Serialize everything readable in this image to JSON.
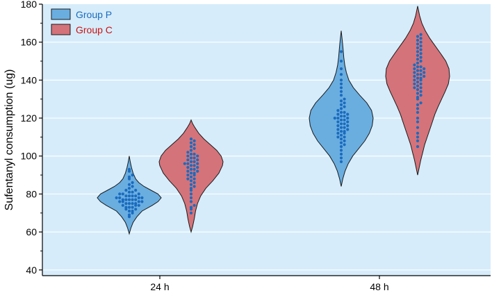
{
  "chart_data": {
    "type": "violin",
    "title": "",
    "xlabel": "",
    "ylabel": "Sufentanyl consumption (ug)",
    "ylim": [
      37,
      180
    ],
    "yticks": [
      40,
      60,
      80,
      100,
      120,
      140,
      160,
      180
    ],
    "categories": [
      "24 h",
      "48 h"
    ],
    "grid": true,
    "legend_position": "top-left",
    "background_color": "#d6ecfa",
    "point_color": "#1a6bbf",
    "series": [
      {
        "name": "Group P",
        "fill_color": "#6aaee0",
        "text_color": "#1a6bbf",
        "groups": [
          {
            "category": "24 h",
            "range": [
              59,
              100
            ],
            "density": [
              [
                59,
                0.0
              ],
              [
                62,
                0.05
              ],
              [
                65,
                0.12
              ],
              [
                68,
                0.24
              ],
              [
                71,
                0.4
              ],
              [
                74,
                0.72
              ],
              [
                76,
                0.9
              ],
              [
                78,
                1.0
              ],
              [
                80,
                0.9
              ],
              [
                82,
                0.68
              ],
              [
                84,
                0.46
              ],
              [
                86,
                0.3
              ],
              [
                88,
                0.2
              ],
              [
                91,
                0.12
              ],
              [
                94,
                0.07
              ],
              [
                97,
                0.03
              ],
              [
                100,
                0.0
              ]
            ],
            "points": [
              68,
              69,
              70,
              71,
              71,
              72,
              72,
              73,
              73,
              73,
              74,
              74,
              74,
              75,
              75,
              75,
              75,
              76,
              76,
              76,
              76,
              77,
              77,
              77,
              77,
              77,
              78,
              78,
              78,
              78,
              79,
              79,
              79,
              79,
              80,
              80,
              80,
              81,
              81,
              82,
              82,
              83,
              84,
              85,
              86,
              88,
              89,
              90,
              92,
              93
            ]
          },
          {
            "category": "48 h",
            "range": [
              84,
              166
            ],
            "density": [
              [
                84,
                0.0
              ],
              [
                88,
                0.05
              ],
              [
                92,
                0.12
              ],
              [
                96,
                0.22
              ],
              [
                100,
                0.36
              ],
              [
                104,
                0.55
              ],
              [
                108,
                0.74
              ],
              [
                112,
                0.88
              ],
              [
                116,
                0.97
              ],
              [
                120,
                1.0
              ],
              [
                124,
                0.95
              ],
              [
                128,
                0.8
              ],
              [
                132,
                0.58
              ],
              [
                136,
                0.38
              ],
              [
                140,
                0.24
              ],
              [
                144,
                0.16
              ],
              [
                148,
                0.11
              ],
              [
                152,
                0.08
              ],
              [
                156,
                0.06
              ],
              [
                160,
                0.04
              ],
              [
                163,
                0.02
              ],
              [
                166,
                0.0
              ]
            ],
            "points": [
              97,
              99,
              101,
              103,
              105,
              106,
              107,
              108,
              109,
              110,
              110,
              111,
              112,
              112,
              113,
              113,
              114,
              114,
              115,
              115,
              116,
              116,
              117,
              117,
              118,
              118,
              119,
              119,
              120,
              120,
              120,
              121,
              121,
              122,
              122,
              123,
              123,
              124,
              125,
              126,
              127,
              128,
              129,
              130,
              132,
              134,
              136,
              138,
              140,
              143,
              146,
              150,
              155
            ]
          }
        ]
      },
      {
        "name": "Group C",
        "fill_color": "#d4737a",
        "text_color": "#cc1111",
        "groups": [
          {
            "category": "24 h",
            "range": [
              60,
              119
            ],
            "density": [
              [
                60,
                0.0
              ],
              [
                63,
                0.05
              ],
              [
                67,
                0.1
              ],
              [
                71,
                0.14
              ],
              [
                75,
                0.2
              ],
              [
                79,
                0.3
              ],
              [
                83,
                0.46
              ],
              [
                87,
                0.68
              ],
              [
                91,
                0.87
              ],
              [
                95,
                0.98
              ],
              [
                97,
                1.0
              ],
              [
                100,
                0.94
              ],
              [
                103,
                0.8
              ],
              [
                106,
                0.6
              ],
              [
                109,
                0.4
              ],
              [
                112,
                0.24
              ],
              [
                115,
                0.12
              ],
              [
                117,
                0.05
              ],
              [
                119,
                0.0
              ]
            ],
            "points": [
              70,
              72,
              73,
              74,
              76,
              78,
              80,
              82,
              83,
              84,
              85,
              86,
              87,
              88,
              88,
              89,
              90,
              90,
              91,
              91,
              92,
              92,
              93,
              93,
              94,
              94,
              95,
              95,
              96,
              96,
              96,
              97,
              97,
              98,
              98,
              99,
              99,
              100,
              100,
              101,
              101,
              102,
              103,
              104,
              105,
              106,
              107,
              108,
              109
            ]
          },
          {
            "category": "48 h",
            "range": [
              90,
              179
            ],
            "density": [
              [
                90,
                0.0
              ],
              [
                94,
                0.05
              ],
              [
                98,
                0.1
              ],
              [
                102,
                0.16
              ],
              [
                106,
                0.22
              ],
              [
                110,
                0.3
              ],
              [
                114,
                0.38
              ],
              [
                118,
                0.46
              ],
              [
                122,
                0.54
              ],
              [
                126,
                0.64
              ],
              [
                130,
                0.75
              ],
              [
                134,
                0.86
              ],
              [
                138,
                0.96
              ],
              [
                142,
                1.0
              ],
              [
                146,
                0.98
              ],
              [
                150,
                0.88
              ],
              [
                154,
                0.72
              ],
              [
                158,
                0.55
              ],
              [
                162,
                0.38
              ],
              [
                166,
                0.24
              ],
              [
                170,
                0.13
              ],
              [
                174,
                0.06
              ],
              [
                179,
                0.0
              ]
            ],
            "points": [
              105,
              108,
              110,
              112,
              115,
              118,
              120,
              123,
              125,
              127,
              128,
              130,
              131,
              132,
              133,
              134,
              135,
              136,
              136,
              137,
              138,
              138,
              139,
              140,
              140,
              141,
              141,
              142,
              142,
              143,
              143,
              144,
              144,
              145,
              145,
              146,
              146,
              147,
              147,
              148,
              149,
              150,
              151,
              152,
              153,
              154,
              155,
              156,
              157,
              158,
              159,
              160,
              161,
              162,
              163,
              164
            ]
          }
        ]
      }
    ]
  }
}
